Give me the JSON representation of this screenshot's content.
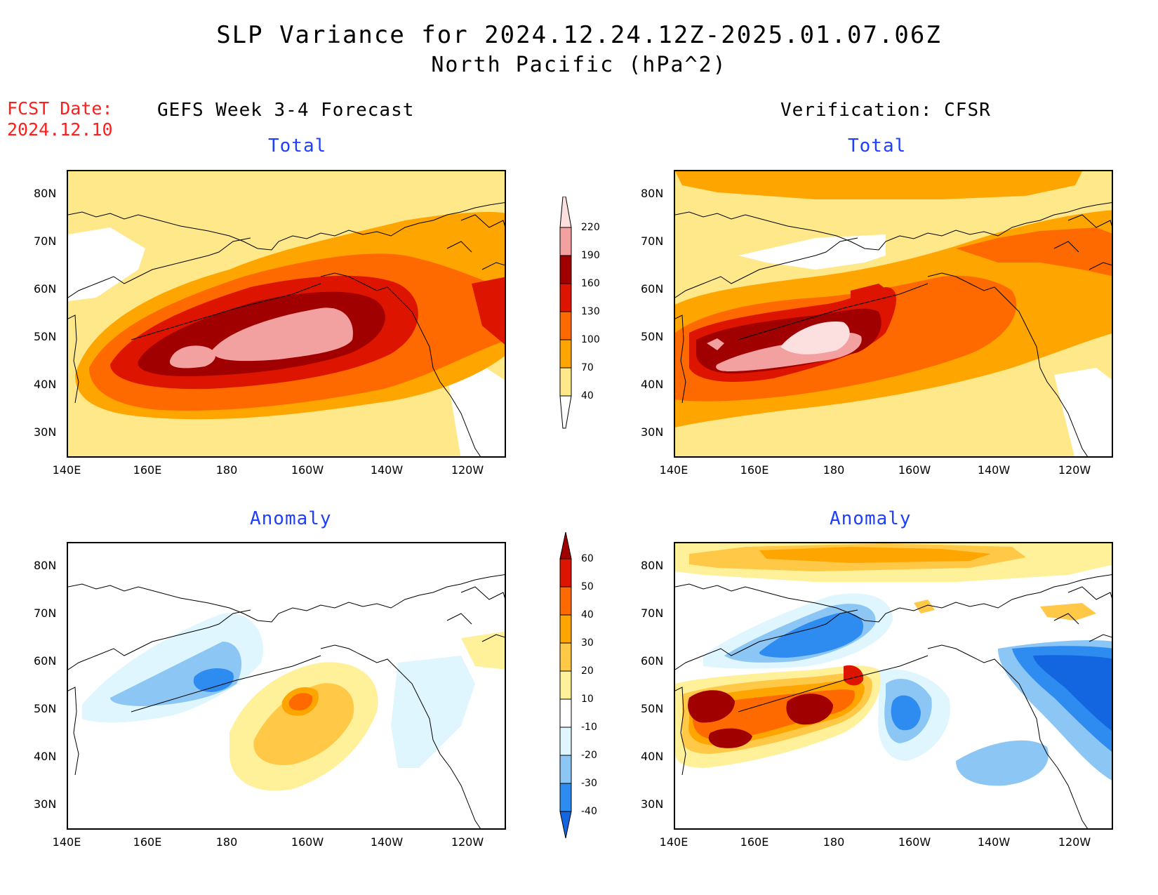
{
  "header": {
    "title": "SLP Variance for 2024.12.24.12Z-2025.01.07.06Z",
    "subtitle": "North Pacific (hPa^2)",
    "fcst_label": "FCST Date:",
    "fcst_date": "2024.12.10"
  },
  "columns": {
    "left": "GEFS Week 3-4 Forecast",
    "right": "Verification: CFSR"
  },
  "panels": {
    "top_left_title": "Total",
    "top_right_title": "Total",
    "bottom_left_title": "Anomaly",
    "bottom_right_title": "Anomaly"
  },
  "axes": {
    "y_ticks": [
      "80N",
      "70N",
      "60N",
      "50N",
      "40N",
      "30N"
    ],
    "x_ticks": [
      "140E",
      "160E",
      "180",
      "160W",
      "140W",
      "120W"
    ]
  },
  "colorbar_total": {
    "labels": [
      "40",
      "70",
      "100",
      "130",
      "160",
      "190",
      "220"
    ],
    "colors": [
      "#ffffff",
      "#ffe88a",
      "#ffa500",
      "#ff6a00",
      "#dd1500",
      "#a00000",
      "#f2a0a0",
      "#fce0e0"
    ]
  },
  "colorbar_anomaly": {
    "labels": [
      "-40",
      "-30",
      "-20",
      "-10",
      "10",
      "20",
      "30",
      "40",
      "50",
      "60"
    ],
    "colors": [
      "#1466e0",
      "#2e8cf0",
      "#8cc6f5",
      "#dff6ff",
      "#ffffff",
      "#fff09a",
      "#ffc846",
      "#ffa500",
      "#ff6a00",
      "#dd1500",
      "#a00000"
    ]
  }
}
